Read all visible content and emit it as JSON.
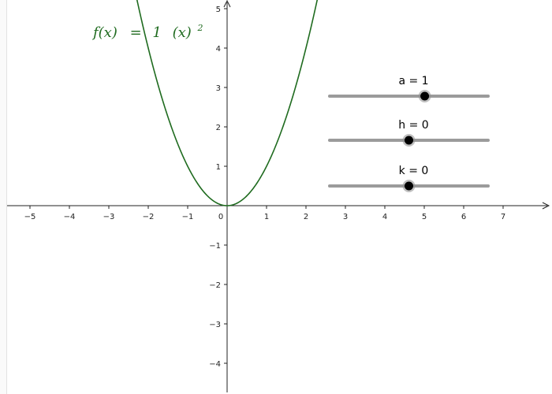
{
  "function": {
    "name": "f",
    "color": "#1f6b1f",
    "label_parts": {
      "lhs": "f(x)",
      "eq": "=",
      "coef": "1",
      "base": "(x)",
      "exp": "2"
    }
  },
  "axes": {
    "x_range": [
      -5.5,
      8.2
    ],
    "y_range": [
      -4.7,
      5.2
    ],
    "x_ticks": [
      {
        "v": -5,
        "label": "−5"
      },
      {
        "v": -4,
        "label": "−4"
      },
      {
        "v": -3,
        "label": "−3"
      },
      {
        "v": -2,
        "label": "−2"
      },
      {
        "v": -1,
        "label": "−1"
      },
      {
        "v": 1,
        "label": "1"
      },
      {
        "v": 2,
        "label": "2"
      },
      {
        "v": 3,
        "label": "3"
      },
      {
        "v": 4,
        "label": "4"
      },
      {
        "v": 5,
        "label": "5"
      },
      {
        "v": 6,
        "label": "6"
      },
      {
        "v": 7,
        "label": "7"
      }
    ],
    "y_ticks": [
      {
        "v": 5,
        "label": "5"
      },
      {
        "v": 4,
        "label": "4"
      },
      {
        "v": 3,
        "label": "3"
      },
      {
        "v": 2,
        "label": "2"
      },
      {
        "v": 1,
        "label": "1"
      },
      {
        "v": -1,
        "label": "−1"
      },
      {
        "v": -2,
        "label": "−2"
      },
      {
        "v": -3,
        "label": "−3"
      },
      {
        "v": -4,
        "label": "−4"
      }
    ],
    "origin_label": "0",
    "axis_color": "#222222"
  },
  "sliders": [
    {
      "id": "a",
      "label": "a = 1",
      "value": 1,
      "fraction": 0.6
    },
    {
      "id": "h",
      "label": "h = 0",
      "value": 0,
      "fraction": 0.5
    },
    {
      "id": "k",
      "label": "k = 0",
      "value": 0,
      "fraction": 0.5
    }
  ],
  "colors": {
    "slider_track": "#9b9b9b",
    "slider_knob": "#000000",
    "slider_knob_ring": "#8c8c8c"
  }
}
